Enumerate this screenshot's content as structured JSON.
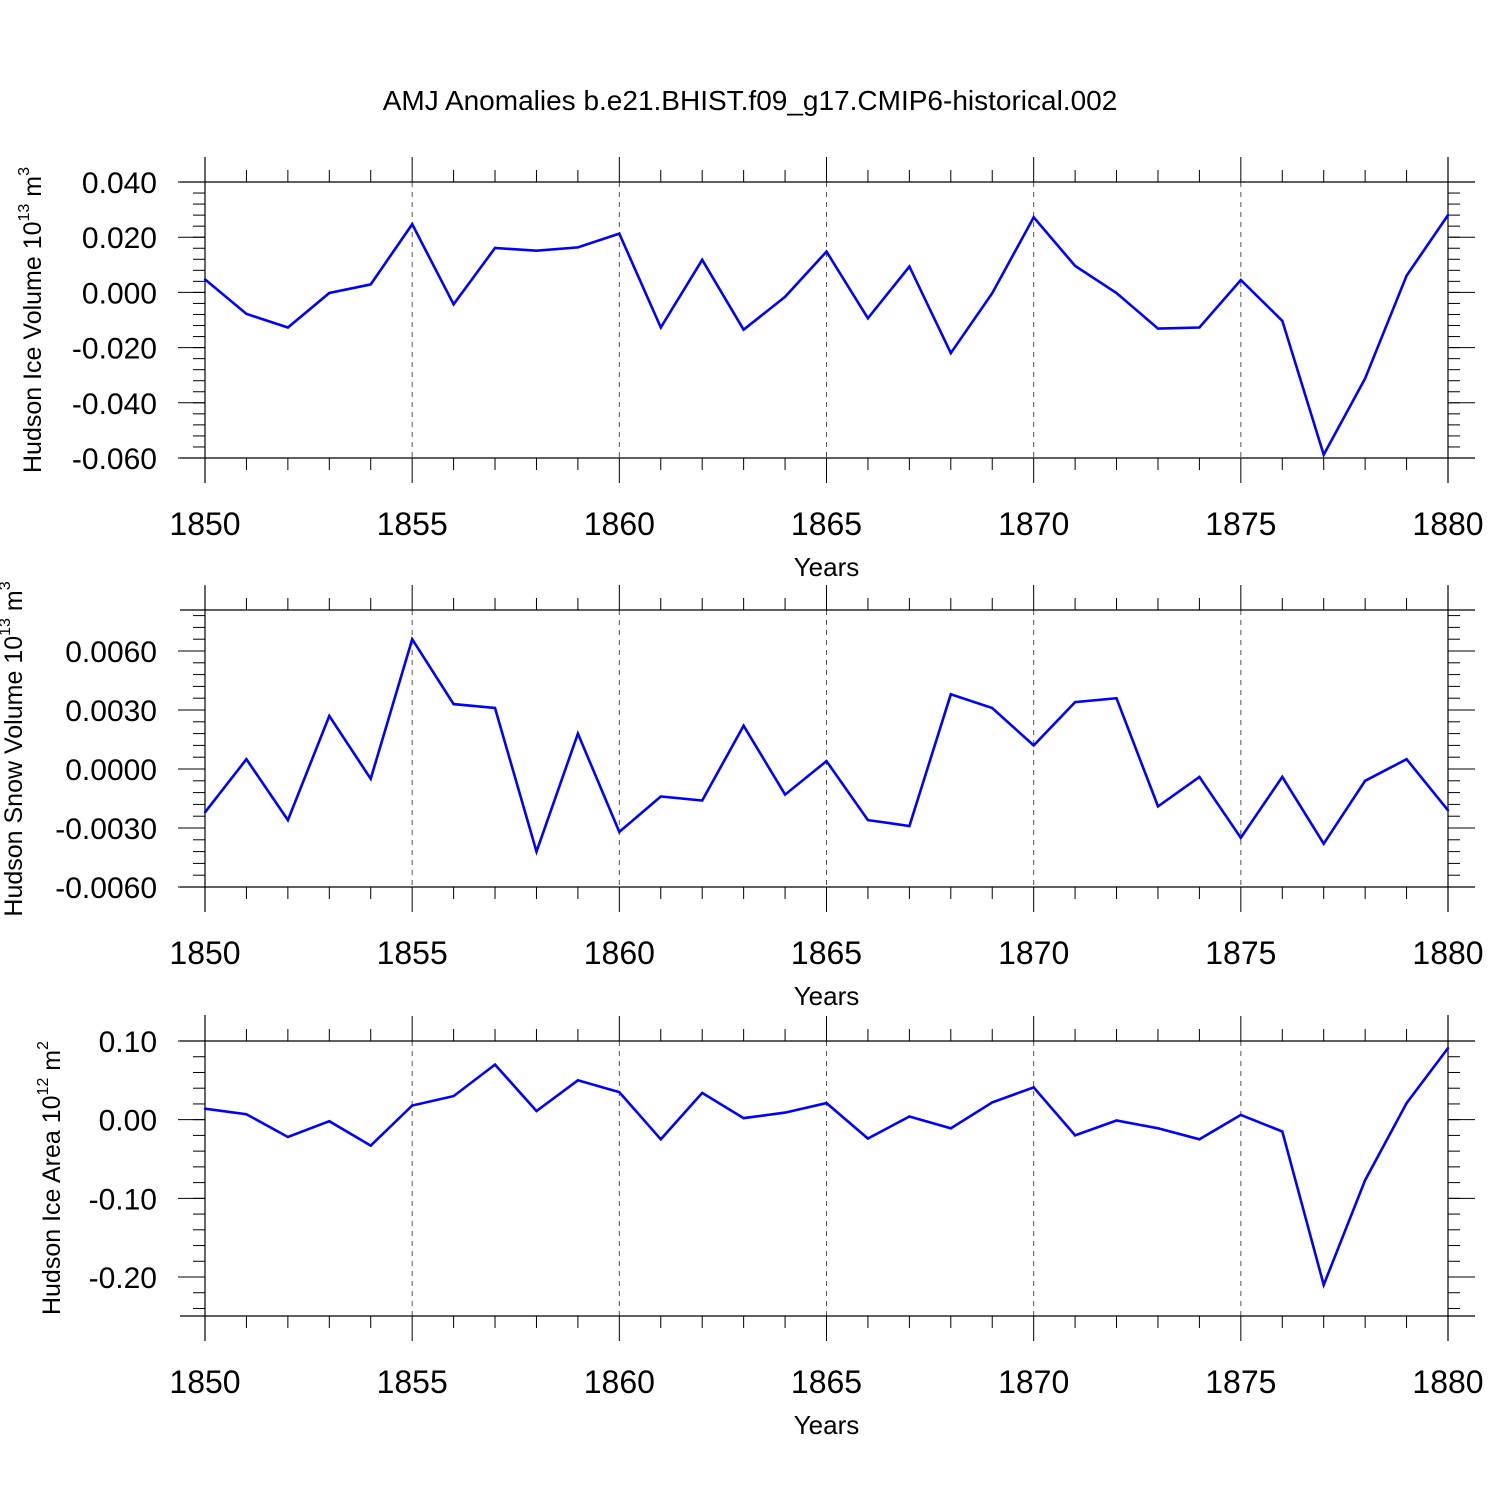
{
  "title": "AMJ Anomalies b.e21.BHIST.f09_g17.CMIP6-historical.002",
  "colors": {
    "series": "#0000ff",
    "axes": "#000000",
    "grid": "#555555"
  },
  "chart_data": [
    {
      "type": "line",
      "ylabel": {
        "text": "Hudson Ice Volume 10",
        "sup": "13",
        "unit": " m",
        "unit_sup": "3"
      },
      "xlabel": "Years",
      "xlim": [
        1850,
        1880
      ],
      "ylim": [
        -0.06,
        0.04
      ],
      "yticks": [
        "0.040",
        "0.020",
        "0.000",
        "-0.020",
        "-0.040",
        "-0.060"
      ],
      "xticks": [
        "1850",
        "1855",
        "1860",
        "1865",
        "1870",
        "1875",
        "1880"
      ],
      "grid": "vertical dashed at major x ticks",
      "x": [
        1850,
        1851,
        1852,
        1853,
        1854,
        1855,
        1856,
        1857,
        1858,
        1859,
        1860,
        1861,
        1862,
        1863,
        1864,
        1865,
        1866,
        1867,
        1868,
        1869,
        1870,
        1871,
        1872,
        1873,
        1874,
        1875,
        1876,
        1877,
        1878,
        1879,
        1880
      ],
      "values": [
        0.0047,
        -0.0078,
        -0.0127,
        -0.0002,
        0.0029,
        0.0247,
        -0.0043,
        0.0161,
        0.0151,
        0.0163,
        0.0213,
        -0.0127,
        0.0118,
        -0.0135,
        -0.0016,
        0.0148,
        -0.0094,
        0.0094,
        -0.022,
        -0.0003,
        0.0272,
        0.0096,
        -0.0002,
        -0.0131,
        -0.0127,
        0.0045,
        -0.0103,
        -0.0588,
        -0.0312,
        0.0061,
        0.028
      ]
    },
    {
      "type": "line",
      "ylabel": {
        "text": "Hudson Snow Volume 10",
        "sup": "13",
        "unit": " m",
        "unit_sup": "3"
      },
      "xlabel": "Years",
      "xlim": [
        1850,
        1880
      ],
      "ylim": [
        -0.006,
        0.008
      ],
      "yticks": [
        "0.0060",
        "0.0030",
        "0.0000",
        "-0.0030",
        "-0.0060"
      ],
      "xticks": [
        "1850",
        "1855",
        "1860",
        "1865",
        "1870",
        "1875",
        "1880"
      ],
      "grid": "vertical dashed at major x ticks",
      "x": [
        1850,
        1851,
        1852,
        1853,
        1854,
        1855,
        1856,
        1857,
        1858,
        1859,
        1860,
        1861,
        1862,
        1863,
        1864,
        1865,
        1866,
        1867,
        1868,
        1869,
        1870,
        1871,
        1872,
        1873,
        1874,
        1875,
        1876,
        1877,
        1878,
        1879,
        1880
      ],
      "values": [
        -0.0022,
        0.0005,
        -0.0026,
        0.0027,
        -0.0005,
        0.0066,
        0.0033,
        0.0031,
        -0.0042,
        0.0018,
        -0.0032,
        -0.0014,
        -0.0016,
        0.0022,
        -0.0013,
        0.0004,
        -0.0026,
        -0.0029,
        0.0038,
        0.0031,
        0.0012,
        0.0034,
        0.0036,
        -0.0019,
        -0.0004,
        -0.0035,
        -0.0004,
        -0.0038,
        -0.0006,
        0.0005,
        -0.0021
      ]
    },
    {
      "type": "line",
      "ylabel": {
        "text": "Hudson Ice Area 10",
        "sup": "12",
        "unit": " m",
        "unit_sup": "2"
      },
      "xlabel": "Years",
      "xlim": [
        1850,
        1880
      ],
      "ylim": [
        -0.25,
        0.1
      ],
      "yticks": [
        "0.10",
        "0.00",
        "-0.10",
        "-0.20"
      ],
      "xticks": [
        "1850",
        "1855",
        "1860",
        "1865",
        "1870",
        "1875",
        "1880"
      ],
      "grid": "vertical dashed at major x ticks",
      "x": [
        1850,
        1851,
        1852,
        1853,
        1854,
        1855,
        1856,
        1857,
        1858,
        1859,
        1860,
        1861,
        1862,
        1863,
        1864,
        1865,
        1866,
        1867,
        1868,
        1869,
        1870,
        1871,
        1872,
        1873,
        1874,
        1875,
        1876,
        1877,
        1878,
        1879,
        1880
      ],
      "values": [
        0.014,
        0.007,
        -0.022,
        -0.002,
        -0.033,
        0.018,
        0.03,
        0.07,
        0.011,
        0.05,
        0.035,
        -0.025,
        0.034,
        0.002,
        0.009,
        0.021,
        -0.024,
        0.004,
        -0.011,
        0.022,
        0.041,
        -0.02,
        -0.001,
        -0.011,
        -0.025,
        0.006,
        -0.015,
        -0.21,
        -0.077,
        0.021,
        0.091
      ]
    }
  ]
}
